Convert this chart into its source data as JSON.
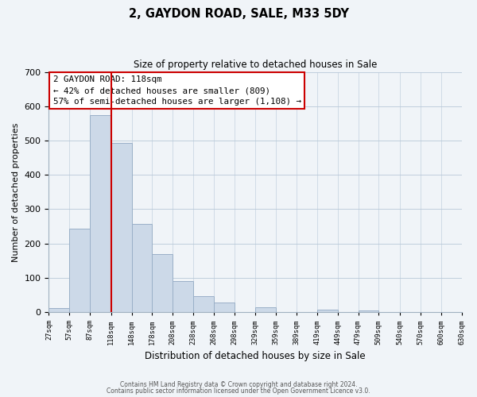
{
  "title": "2, GAYDON ROAD, SALE, M33 5DY",
  "subtitle": "Size of property relative to detached houses in Sale",
  "xlabel": "Distribution of detached houses by size in Sale",
  "ylabel": "Number of detached properties",
  "bar_color": "#ccd9e8",
  "bar_edge_color": "#9ab0c8",
  "bins": [
    27,
    57,
    87,
    118,
    148,
    178,
    208,
    238,
    268,
    298,
    329,
    359,
    389,
    419,
    449,
    479,
    509,
    540,
    570,
    600,
    630
  ],
  "bin_labels": [
    "27sqm",
    "57sqm",
    "87sqm",
    "118sqm",
    "148sqm",
    "178sqm",
    "208sqm",
    "238sqm",
    "268sqm",
    "298sqm",
    "329sqm",
    "359sqm",
    "389sqm",
    "419sqm",
    "449sqm",
    "479sqm",
    "509sqm",
    "540sqm",
    "570sqm",
    "600sqm",
    "630sqm"
  ],
  "values": [
    12,
    244,
    573,
    493,
    258,
    169,
    91,
    47,
    27,
    0,
    14,
    0,
    0,
    7,
    0,
    5,
    0,
    0,
    0,
    0
  ],
  "ylim": [
    0,
    700
  ],
  "yticks": [
    0,
    100,
    200,
    300,
    400,
    500,
    600,
    700
  ],
  "vline_x": 118,
  "vline_color": "#cc0000",
  "annotation_title": "2 GAYDON ROAD: 118sqm",
  "annotation_line1": "← 42% of detached houses are smaller (809)",
  "annotation_line2": "57% of semi-detached houses are larger (1,108) →",
  "annotation_box_color": "#ffffff",
  "annotation_box_edge": "#cc0000",
  "footer1": "Contains HM Land Registry data © Crown copyright and database right 2024.",
  "footer2": "Contains public sector information licensed under the Open Government Licence v3.0.",
  "bg_color": "#f0f4f8"
}
